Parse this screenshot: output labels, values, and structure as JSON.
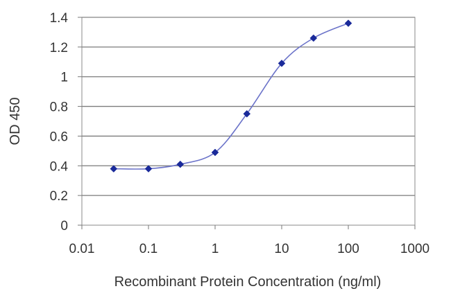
{
  "chart_data": {
    "type": "scatter",
    "title": "",
    "xlabel": "Recombinant Protein Concentration (ng/ml)",
    "ylabel": "OD 450",
    "xscale": "log",
    "xlim": [
      0.01,
      1000
    ],
    "ylim": [
      0,
      1.4
    ],
    "x_ticks": [
      {
        "value": 0.01,
        "label": "0.01"
      },
      {
        "value": 0.1,
        "label": "0.1"
      },
      {
        "value": 1,
        "label": "1"
      },
      {
        "value": 10,
        "label": "10"
      },
      {
        "value": 100,
        "label": "100"
      },
      {
        "value": 1000,
        "label": "1000"
      }
    ],
    "y_ticks": [
      {
        "value": 0,
        "label": "0"
      },
      {
        "value": 0.2,
        "label": "0.2"
      },
      {
        "value": 0.4,
        "label": "0.4"
      },
      {
        "value": 0.6,
        "label": "0.6"
      },
      {
        "value": 0.8,
        "label": "0.8"
      },
      {
        "value": 1,
        "label": "1"
      },
      {
        "value": 1.2,
        "label": "1.2"
      },
      {
        "value": 1.4,
        "label": "1.4"
      }
    ],
    "grid": "horizontal",
    "legend": "none",
    "series": [
      {
        "x": [
          0.03,
          0.1,
          0.3,
          1,
          3,
          10,
          30,
          100
        ],
        "y": [
          0.38,
          0.38,
          0.41,
          0.49,
          0.75,
          1.09,
          1.26,
          1.36
        ],
        "color": "#1a2a9a",
        "line_color": "#6b73c9",
        "marker": "diamond",
        "fitted_curve": true
      }
    ]
  }
}
